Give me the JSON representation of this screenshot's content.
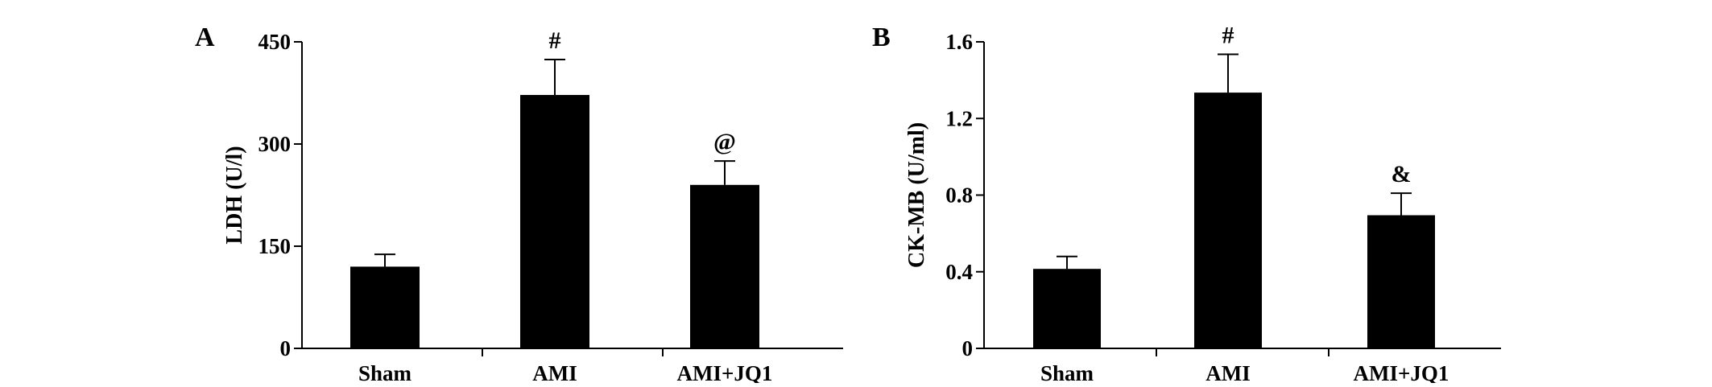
{
  "chart_data": [
    {
      "type": "bar",
      "panel": "A",
      "categories": [
        "Sham",
        "AMI",
        "AMI+JQ1"
      ],
      "values": [
        120,
        372,
        240
      ],
      "errors": [
        18,
        52,
        35
      ],
      "annotations": [
        "",
        "#",
        "@"
      ],
      "ylabel": "LDH (U/l)",
      "xlabel": "",
      "title": "",
      "ylim": [
        0,
        450
      ],
      "yticks": [
        0,
        150,
        300,
        450
      ],
      "ytick_labels": [
        "0",
        "150",
        "300",
        "450"
      ],
      "bar_color": "#000000",
      "grid": false
    },
    {
      "type": "bar",
      "panel": "B",
      "categories": [
        "Sham",
        "AMI",
        "AMI+JQ1"
      ],
      "values": [
        0.415,
        1.335,
        0.695
      ],
      "errors": [
        0.065,
        0.2,
        0.115
      ],
      "annotations": [
        "",
        "#",
        "&"
      ],
      "ylabel": "CK-MB (U/ml)",
      "xlabel": "",
      "title": "",
      "ylim": [
        0,
        1.6
      ],
      "yticks": [
        0,
        0.4,
        0.8,
        1.2,
        1.6
      ],
      "ytick_labels": [
        "0",
        "0.4",
        "0.8",
        "1.2",
        "1.6"
      ],
      "bar_color": "#000000",
      "grid": false
    }
  ]
}
